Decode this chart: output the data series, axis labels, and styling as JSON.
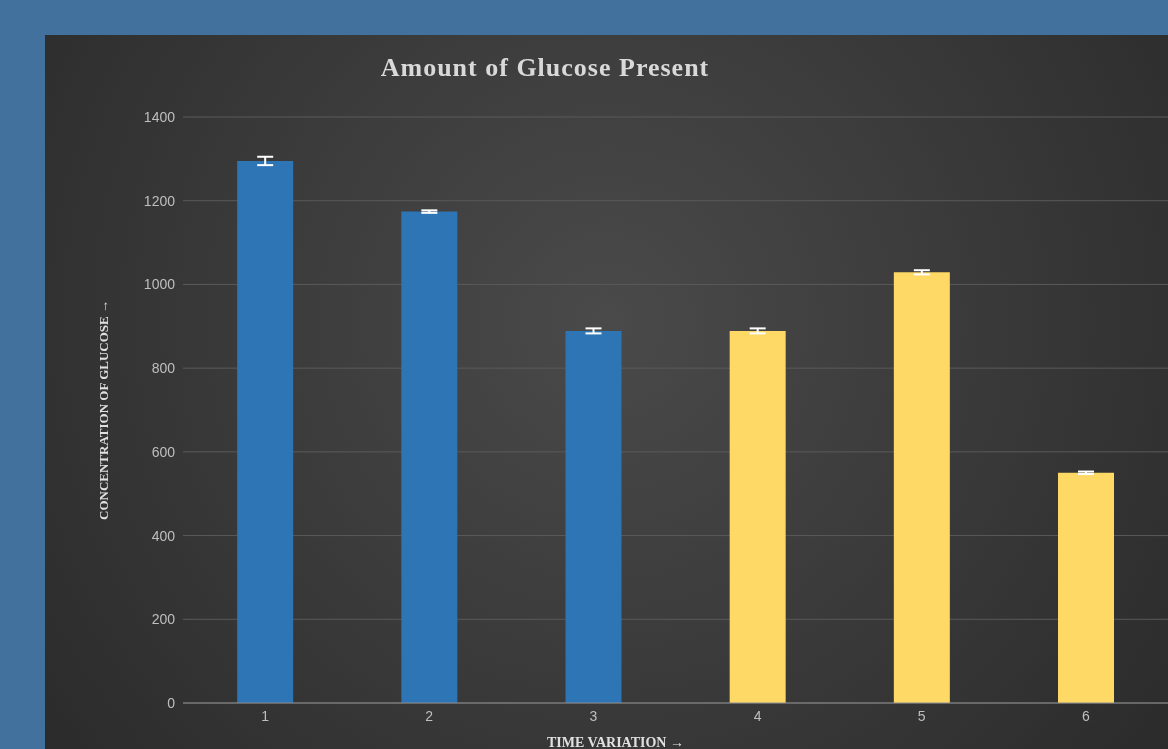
{
  "chart_data": {
    "type": "bar",
    "title": "Amount of Glucose Present",
    "xlabel": "TIME VARIATION →",
    "ylabel": "CONCENTRATION OF GLUCOSE →",
    "categories": [
      "1",
      "2",
      "3",
      "4",
      "5",
      "6"
    ],
    "values": [
      1295,
      1174,
      889,
      889,
      1029,
      550
    ],
    "errors": [
      10,
      3,
      6,
      6,
      5,
      3
    ],
    "colors": [
      "#2e75b6",
      "#2e75b6",
      "#2e75b6",
      "#ffd966",
      "#ffd966",
      "#ffd966"
    ],
    "ylim": [
      0,
      1400
    ],
    "yticks": [
      0,
      200,
      400,
      600,
      800,
      1000,
      1200,
      1400
    ],
    "grid": "y"
  }
}
